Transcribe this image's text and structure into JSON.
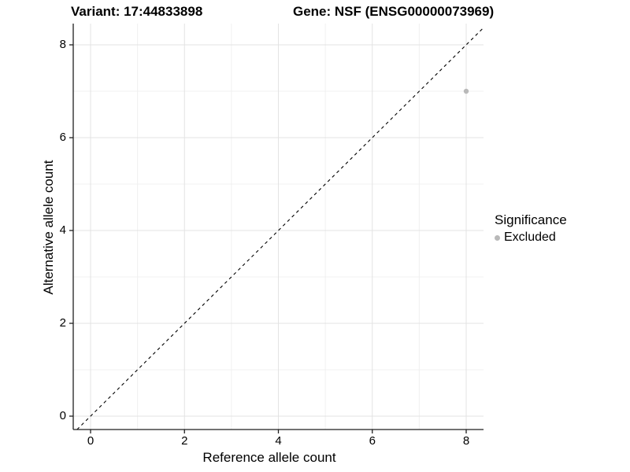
{
  "chart_data": {
    "type": "scatter",
    "titles": {
      "left": "Variant: 17:44833898",
      "right": "Gene: NSF (ENSG00000073969)"
    },
    "xlabel": "Reference allele count",
    "ylabel": "Alternative allele count",
    "xticks": [
      0,
      2,
      4,
      6,
      8
    ],
    "yticks": [
      0,
      2,
      4,
      6,
      8
    ],
    "xlim": [
      -0.37,
      8.37
    ],
    "ylim": [
      -0.29,
      8.46
    ],
    "grid": {
      "major": [
        0,
        2,
        4,
        6,
        8
      ],
      "minor": [
        1,
        3,
        5,
        7
      ]
    },
    "points": [
      {
        "x": 8,
        "y": 7,
        "significance": "Excluded"
      }
    ],
    "reference_line": {
      "kind": "identity",
      "slope": 1,
      "intercept": 0,
      "style": "dashed",
      "color": "#000000"
    },
    "legend": {
      "title": "Significance",
      "position": "right",
      "items": [
        {
          "label": "Excluded",
          "color": "#b9b9b9",
          "marker": "circle"
        }
      ]
    },
    "colors": {
      "point": "#b9b9b9",
      "axis": "#1f1f1f",
      "grid_major": "#e3e3e3",
      "grid_minor": "#f0f0f0",
      "background": "#ffffff"
    }
  }
}
